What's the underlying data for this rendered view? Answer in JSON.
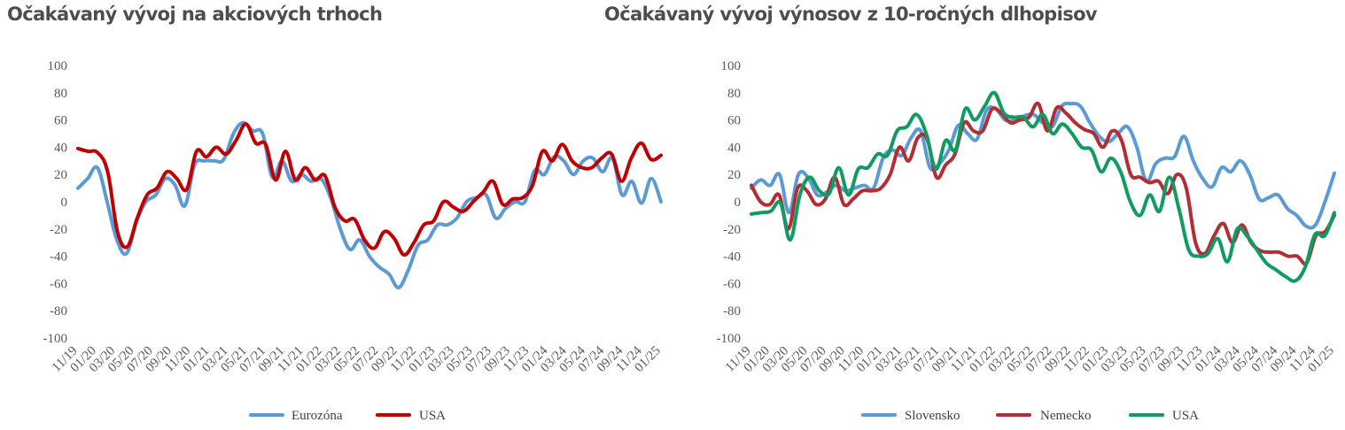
{
  "chart_data": [
    {
      "type": "line",
      "title": "Očakávaný vývoj na akciových trhoch",
      "xlabel": "",
      "ylabel": "",
      "ylim": [
        -100,
        100
      ],
      "yticks": [
        "100",
        "80",
        "60",
        "40",
        "20",
        "0",
        "-20",
        "-40",
        "-60",
        "-80",
        "-100"
      ],
      "xticks": [
        "11/19",
        "01/20",
        "03/20",
        "05/20",
        "07/20",
        "09/20",
        "11/20",
        "01/21",
        "03/21",
        "05/21",
        "07/21",
        "09/21",
        "11/21",
        "01/22",
        "03/22",
        "05/22",
        "07/22",
        "09/22",
        "11/22",
        "01/23",
        "03/23",
        "05/23",
        "07/23",
        "09/23",
        "11/23",
        "01/24",
        "03/24",
        "05/24",
        "07/24",
        "09/24",
        "11/24",
        "01/25"
      ],
      "grid": false,
      "legend": "bottom",
      "series": [
        {
          "name": "Eurozóna",
          "color": "#5b9bd5",
          "values": [
            10,
            17,
            25,
            0,
            -28,
            -38,
            -15,
            0,
            5,
            17,
            12,
            -3,
            27,
            30,
            30,
            31,
            50,
            58,
            52,
            50,
            18,
            30,
            15,
            20,
            15,
            17,
            3,
            -20,
            -35,
            -28,
            -40,
            -48,
            -53,
            -63,
            -50,
            -32,
            -28,
            -17,
            -17,
            -12,
            0,
            3,
            5,
            -12,
            -5,
            0,
            0,
            23,
            20,
            33,
            30,
            20,
            30,
            32,
            22,
            32,
            5,
            15,
            -1,
            17,
            0
          ]
        },
        {
          "name": "USA",
          "color": "#c00000",
          "values": [
            39,
            37,
            36,
            22,
            -22,
            -33,
            -12,
            5,
            10,
            22,
            17,
            9,
            37,
            33,
            40,
            35,
            45,
            57,
            43,
            42,
            16,
            37,
            16,
            25,
            16,
            19,
            -4,
            -14,
            -13,
            -28,
            -34,
            -22,
            -27,
            -39,
            -30,
            -17,
            -14,
            0,
            -4,
            -7,
            0,
            7,
            15,
            -2,
            2,
            3,
            12,
            37,
            30,
            42,
            30,
            25,
            25,
            32,
            35,
            15,
            32,
            43,
            31,
            34
          ]
        }
      ]
    },
    {
      "type": "line",
      "title": "Očakávaný vývoj výnosov z 10-ročných dlhopisov",
      "xlabel": "",
      "ylabel": "",
      "ylim": [
        -100,
        100
      ],
      "yticks": [
        "100",
        "80",
        "60",
        "40",
        "20",
        "0",
        "-20",
        "-40",
        "-60",
        "-80",
        "-100"
      ],
      "xticks": [
        "11/19",
        "01/20",
        "03/20",
        "05/20",
        "07/20",
        "09/20",
        "11/20",
        "01/21",
        "03/21",
        "05/21",
        "07/21",
        "09/21",
        "11/21",
        "01/22",
        "03/22",
        "05/22",
        "07/22",
        "09/22",
        "11/22",
        "01/23",
        "03/23",
        "05/23",
        "07/23",
        "09/23",
        "11/23",
        "01/24",
        "03/24",
        "05/24",
        "07/24",
        "09/24",
        "11/24",
        "01/25"
      ],
      "grid": false,
      "legend": "bottom",
      "series": [
        {
          "name": "Slovensko",
          "color": "#5b9bd5",
          "values": [
            10,
            16,
            12,
            20,
            -8,
            20,
            18,
            5,
            7,
            12,
            8,
            10,
            12,
            10,
            32,
            38,
            34,
            47,
            52,
            25,
            28,
            38,
            56,
            50,
            46,
            67,
            68,
            60,
            60,
            63,
            64,
            58,
            55,
            70,
            72,
            70,
            58,
            48,
            44,
            50,
            55,
            40,
            15,
            28,
            32,
            33,
            48,
            30,
            17,
            11,
            25,
            22,
            30,
            20,
            2,
            3,
            5,
            -5,
            -10,
            -18,
            -17,
            0,
            21
          ]
        },
        {
          "name": "Nemecko",
          "color": "#b22d34",
          "values": [
            12,
            0,
            -2,
            5,
            -20,
            10,
            8,
            -2,
            2,
            18,
            -2,
            2,
            8,
            8,
            10,
            20,
            40,
            30,
            47,
            46,
            18,
            27,
            35,
            58,
            52,
            52,
            68,
            65,
            58,
            60,
            62,
            72,
            52,
            69,
            65,
            58,
            53,
            50,
            40,
            52,
            45,
            20,
            18,
            14,
            15,
            6,
            20,
            10,
            -30,
            -38,
            -25,
            -16,
            -30,
            -17,
            -30,
            -36,
            -37,
            -37,
            -40,
            -40,
            -45,
            -25,
            -22,
            -10
          ]
        },
        {
          "name": "USA",
          "color": "#0f9b61",
          "values": [
            -9,
            -8,
            -7,
            -1,
            -28,
            5,
            18,
            8,
            6,
            25,
            5,
            24,
            25,
            35,
            34,
            52,
            55,
            64,
            50,
            24,
            45,
            38,
            68,
            60,
            70,
            80,
            65,
            62,
            62,
            55,
            64,
            50,
            57,
            50,
            40,
            38,
            22,
            32,
            22,
            0,
            -10,
            5,
            -7,
            18,
            -5,
            -35,
            -40,
            -38,
            -27,
            -44,
            -20,
            -25,
            -35,
            -45,
            -50,
            -55,
            -58,
            -48,
            -24,
            -25,
            -8
          ]
        }
      ]
    }
  ]
}
